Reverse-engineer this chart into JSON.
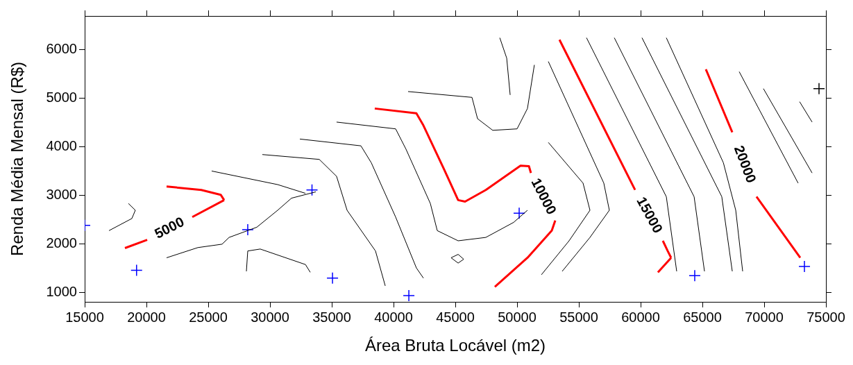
{
  "chart_data": {
    "type": "line",
    "xlabel": "Área Bruta Locável (m2)",
    "ylabel": "Renda Média Mensal (R$)",
    "xlim": [
      15000,
      75000
    ],
    "ylim": [
      800,
      6700
    ],
    "xticks": [
      15000,
      20000,
      25000,
      30000,
      35000,
      40000,
      45000,
      50000,
      55000,
      60000,
      65000,
      70000,
      75000
    ],
    "yticks": [
      1000,
      2000,
      3000,
      4000,
      5000,
      6000
    ],
    "grid": false,
    "legend": false,
    "marker": "none",
    "series": [
      {
        "color": "#ff0000",
        "x": [
          18260,
          20060,
          null,
          23710,
          26290
        ],
        "values": [
          1910,
          2080,
          null,
          2550,
          2900
        ]
      },
      {
        "color": "#ff0000",
        "x": [
          26290,
          26010,
          24440,
          21630
        ],
        "values": [
          2900,
          3010,
          3110,
          3180
        ]
      },
      {
        "color": "#ff0000",
        "x": [
          38480,
          41850,
          42420,
          44100,
          45230,
          45790,
          47470,
          50280,
          50960,
          51120,
          null,
          53090,
          52810,
          50840,
          48200
        ],
        "values": [
          4790,
          4690,
          4440,
          3530,
          2900,
          2870,
          3110,
          3610,
          3600,
          3460,
          null,
          2480,
          2270,
          1710,
          1110
        ]
      },
      {
        "color": "#ff0000",
        "x": [
          53430,
          59550,
          null,
          61800,
          62190,
          62470
        ],
        "values": [
          6210,
          3110,
          null,
          2060,
          1850,
          1710
        ]
      },
      {
        "color": "#ff0000",
        "x": [
          62470,
          61400
        ],
        "values": [
          1710,
          1410
        ]
      },
      {
        "color": "#ff0000",
        "x": [
          65280,
          67420,
          null,
          69380,
          72920
        ],
        "values": [
          5600,
          4300,
          null,
          2970,
          1710
        ]
      },
      {
        "color": "#000000",
        "x": [
          16970,
          18820,
          19100
        ],
        "values": [
          2270,
          2520,
          2690
        ]
      },
      {
        "color": "#000000",
        "x": [
          19100,
          18540
        ],
        "values": [
          2690,
          2830
        ]
      },
      {
        "color": "#000000",
        "x": [
          21630,
          24160,
          26120,
          26690,
          28930,
          30620,
          31740,
          33710
        ],
        "values": [
          1710,
          1920,
          1990,
          2130,
          2340,
          2690,
          2940,
          3070
        ]
      },
      {
        "color": "#000000",
        "x": [
          25280,
          30620,
          32870
        ],
        "values": [
          3500,
          3220,
          3040
        ]
      },
      {
        "color": "#000000",
        "x": [
          28090,
          28200,
          29210,
          32870,
          33260
        ],
        "values": [
          1430,
          1850,
          1890,
          1570,
          1410
        ]
      },
      {
        "color": "#000000",
        "x": [
          29380,
          33990,
          35390,
          36240,
          38540,
          39330
        ],
        "values": [
          3840,
          3740,
          3390,
          2690,
          1850,
          1130
        ]
      },
      {
        "color": "#000000",
        "x": [
          32420,
          37360,
          38200,
          40170,
          41850,
          42420
        ],
        "values": [
          4160,
          4020,
          3670,
          2550,
          1500,
          1290
        ]
      },
      {
        "color": "#000000",
        "x": [
          35390,
          40170,
          41010,
          42980,
          43540,
          45230,
          47470,
          49720,
          50840
        ],
        "values": [
          4510,
          4370,
          3950,
          2830,
          2270,
          2060,
          2130,
          2440,
          2690
        ]
      },
      {
        "color": "#000000",
        "x": [
          41180,
          46350,
          46800,
          48030,
          50000,
          50840,
          51400
        ],
        "values": [
          5140,
          5020,
          4580,
          4340,
          4370,
          4790,
          5690
        ]
      },
      {
        "color": "#000000",
        "x": [
          48600,
          49160,
          49440
        ],
        "values": [
          6250,
          5830,
          5070
        ]
      },
      {
        "color": "#000000",
        "x": [
          44660,
          45230,
          45680
        ],
        "values": [
          1710,
          1780,
          1680
        ]
      },
      {
        "color": "#000000",
        "x": [
          45680,
          45230,
          44660
        ],
        "values": [
          1680,
          1600,
          1710
        ]
      },
      {
        "color": "#000000",
        "x": [
          52530,
          57020,
          57470
        ],
        "values": [
          5760,
          3250,
          2690
        ]
      },
      {
        "color": "#000000",
        "x": [
          57470,
          55900,
          53650
        ],
        "values": [
          2690,
          2130,
          1430
        ]
      },
      {
        "color": "#000000",
        "x": [
          52530,
          55340,
          55900
        ],
        "values": [
          4090,
          3250,
          2690
        ]
      },
      {
        "color": "#000000",
        "x": [
          55900,
          54210,
          51970
        ],
        "values": [
          2690,
          2060,
          1360
        ]
      },
      {
        "color": "#000000",
        "x": [
          55620,
          62080,
          62920
        ],
        "values": [
          6250,
          2970,
          1430
        ]
      },
      {
        "color": "#000000",
        "x": [
          57870,
          64330,
          65170
        ],
        "values": [
          6250,
          2970,
          1430
        ]
      },
      {
        "color": "#000000",
        "x": [
          60110,
          66570,
          67420
        ],
        "values": [
          6250,
          2970,
          1430
        ]
      },
      {
        "color": "#000000",
        "x": [
          62080,
          66700,
          67700,
          68260
        ],
        "values": [
          6250,
          3670,
          2690,
          1430
        ]
      },
      {
        "color": "#000000",
        "x": [
          67980,
          72750
        ],
        "values": [
          5550,
          3250
        ]
      },
      {
        "color": "#000000",
        "x": [
          69940,
          73880
        ],
        "values": [
          5200,
          3460
        ]
      },
      {
        "color": "#000000",
        "x": [
          72870,
          73880
        ],
        "values": [
          4930,
          4510
        ]
      },
      {
        "type": "scatter",
        "marker": "cross",
        "color": "#0000ff",
        "x": [
          15000,
          19200,
          28200,
          33400,
          35060,
          41240,
          50170,
          64380,
          73260
        ],
        "values": [
          2380,
          1450,
          2290,
          3110,
          1290,
          930,
          2630,
          1340,
          1530
        ]
      },
      {
        "type": "scatter",
        "marker": "cross",
        "color": "#000000",
        "x": [
          74440
        ],
        "values": [
          5200
        ]
      }
    ],
    "annotations": [
      "5000",
      "10000",
      "15000",
      "20000"
    ]
  }
}
